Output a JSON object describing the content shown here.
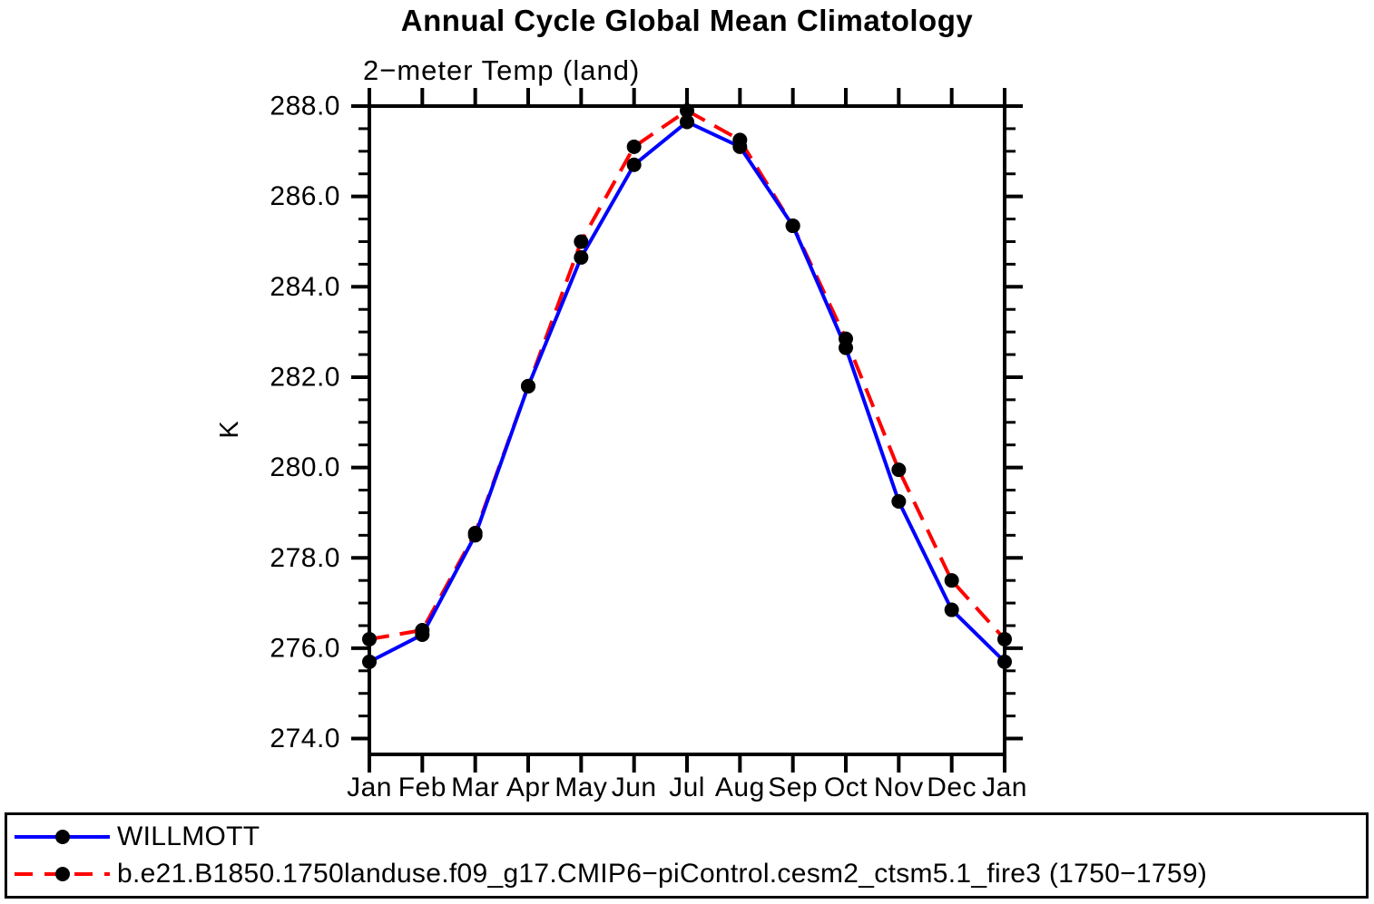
{
  "chart_data": {
    "type": "line",
    "title": "Annual Cycle Global Mean Climatology",
    "subtitle": "2−meter Temp (land)",
    "xlabel": "",
    "ylabel": "K",
    "categories": [
      "Jan",
      "Feb",
      "Mar",
      "Apr",
      "May",
      "Jun",
      "Jul",
      "Aug",
      "Sep",
      "Oct",
      "Nov",
      "Dec",
      "Jan"
    ],
    "ylim": [
      273.65,
      288.0
    ],
    "y_major_ticks": [
      274.0,
      276.0,
      278.0,
      280.0,
      282.0,
      284.0,
      286.0,
      288.0
    ],
    "y_tick_labels": [
      "274.0",
      "276.0",
      "278.0",
      "280.0",
      "282.0",
      "284.0",
      "286.0",
      "288.0"
    ],
    "y_minor_step": 0.5,
    "grid": false,
    "legend_position": "bottom",
    "marker_color": "#000000",
    "axis_color": "#000000",
    "series": [
      {
        "name": "WILLMOTT",
        "color": "#0000ff",
        "style": "solid",
        "values": [
          275.7,
          276.3,
          278.5,
          281.8,
          284.65,
          286.7,
          287.65,
          287.1,
          285.35,
          282.65,
          279.25,
          276.85,
          275.7
        ]
      },
      {
        "name": "b.e21.B1850.1750landuse.f09_g17.CMIP6−piControl.cesm2_ctsm5.1_fire3 (1750−1759)",
        "color": "#ff0000",
        "style": "dashed",
        "values": [
          276.2,
          276.4,
          278.55,
          281.8,
          285.0,
          287.1,
          287.9,
          287.25,
          285.35,
          282.85,
          279.95,
          277.5,
          276.2
        ]
      }
    ]
  }
}
